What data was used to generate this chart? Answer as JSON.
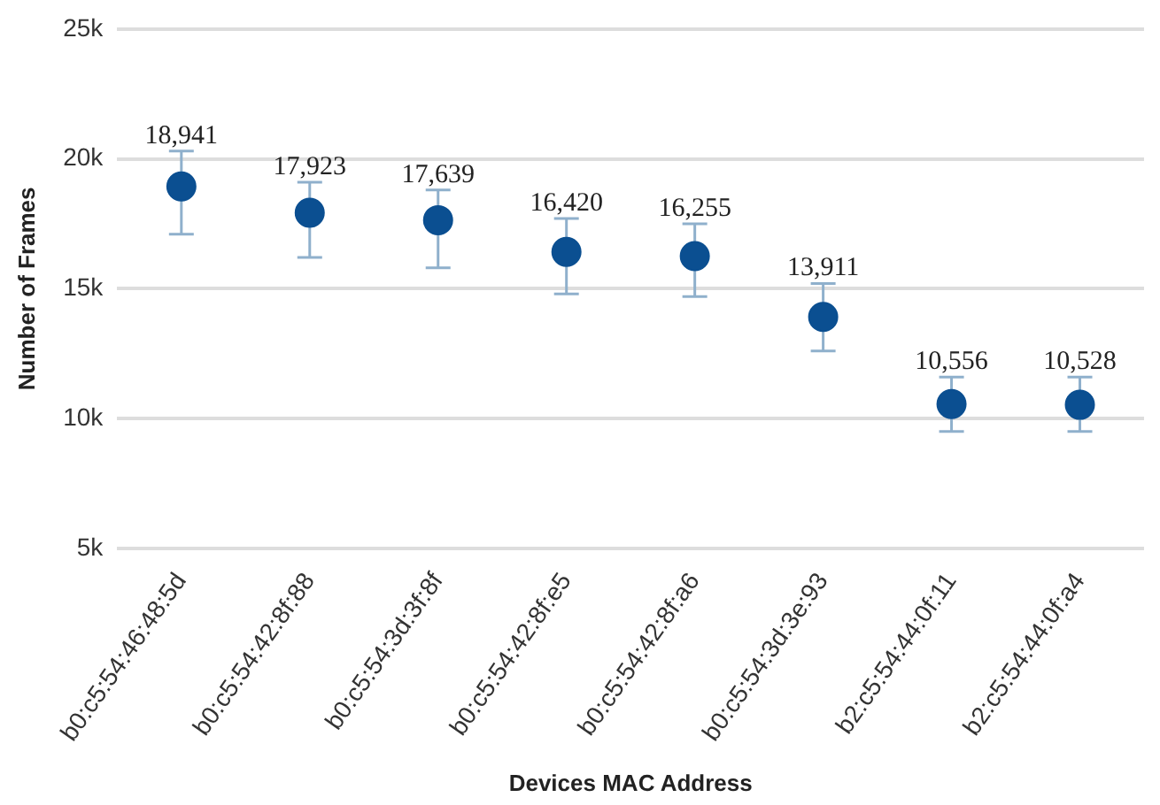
{
  "chart_data": {
    "type": "scatter",
    "xlabel": "Devices MAC Address",
    "ylabel": "Number of Frames",
    "categories": [
      "b0:c5:54:46:48:5d",
      "b0:c5:54:42:8f:88",
      "b0:c5:54:3d:3f:8f",
      "b0:c5:54:42:8f:e5",
      "b0:c5:54:42:8f:a6",
      "b0:c5:54:3d:3e:93",
      "b2:c5:54:44:0f:11",
      "b2:c5:54:44:0f:a4"
    ],
    "series": [
      {
        "color": "#0b4f91",
        "values": [
          18941,
          17923,
          17639,
          16420,
          16255,
          13911,
          10556,
          10528
        ],
        "value_labels": [
          "18,941",
          "17,923",
          "17,639",
          "16,420",
          "16,255",
          "13,911",
          "10,556",
          "10,528"
        ],
        "errors": [
          [
            17100,
            20300
          ],
          [
            16200,
            19100
          ],
          [
            15800,
            18800
          ],
          [
            14800,
            17700
          ],
          [
            14700,
            17500
          ],
          [
            12600,
            15200
          ],
          [
            9500,
            11600
          ],
          [
            9500,
            11600
          ]
        ]
      }
    ],
    "ylim": [
      5000,
      25000
    ],
    "yticks": [
      {
        "value": 5000,
        "label": "5k"
      },
      {
        "value": 10000,
        "label": "10k"
      },
      {
        "value": 15000,
        "label": "15k"
      },
      {
        "value": 20000,
        "label": "20k"
      },
      {
        "value": 25000,
        "label": "25k"
      }
    ],
    "grid": "y",
    "legend": false,
    "marker": "circle"
  }
}
